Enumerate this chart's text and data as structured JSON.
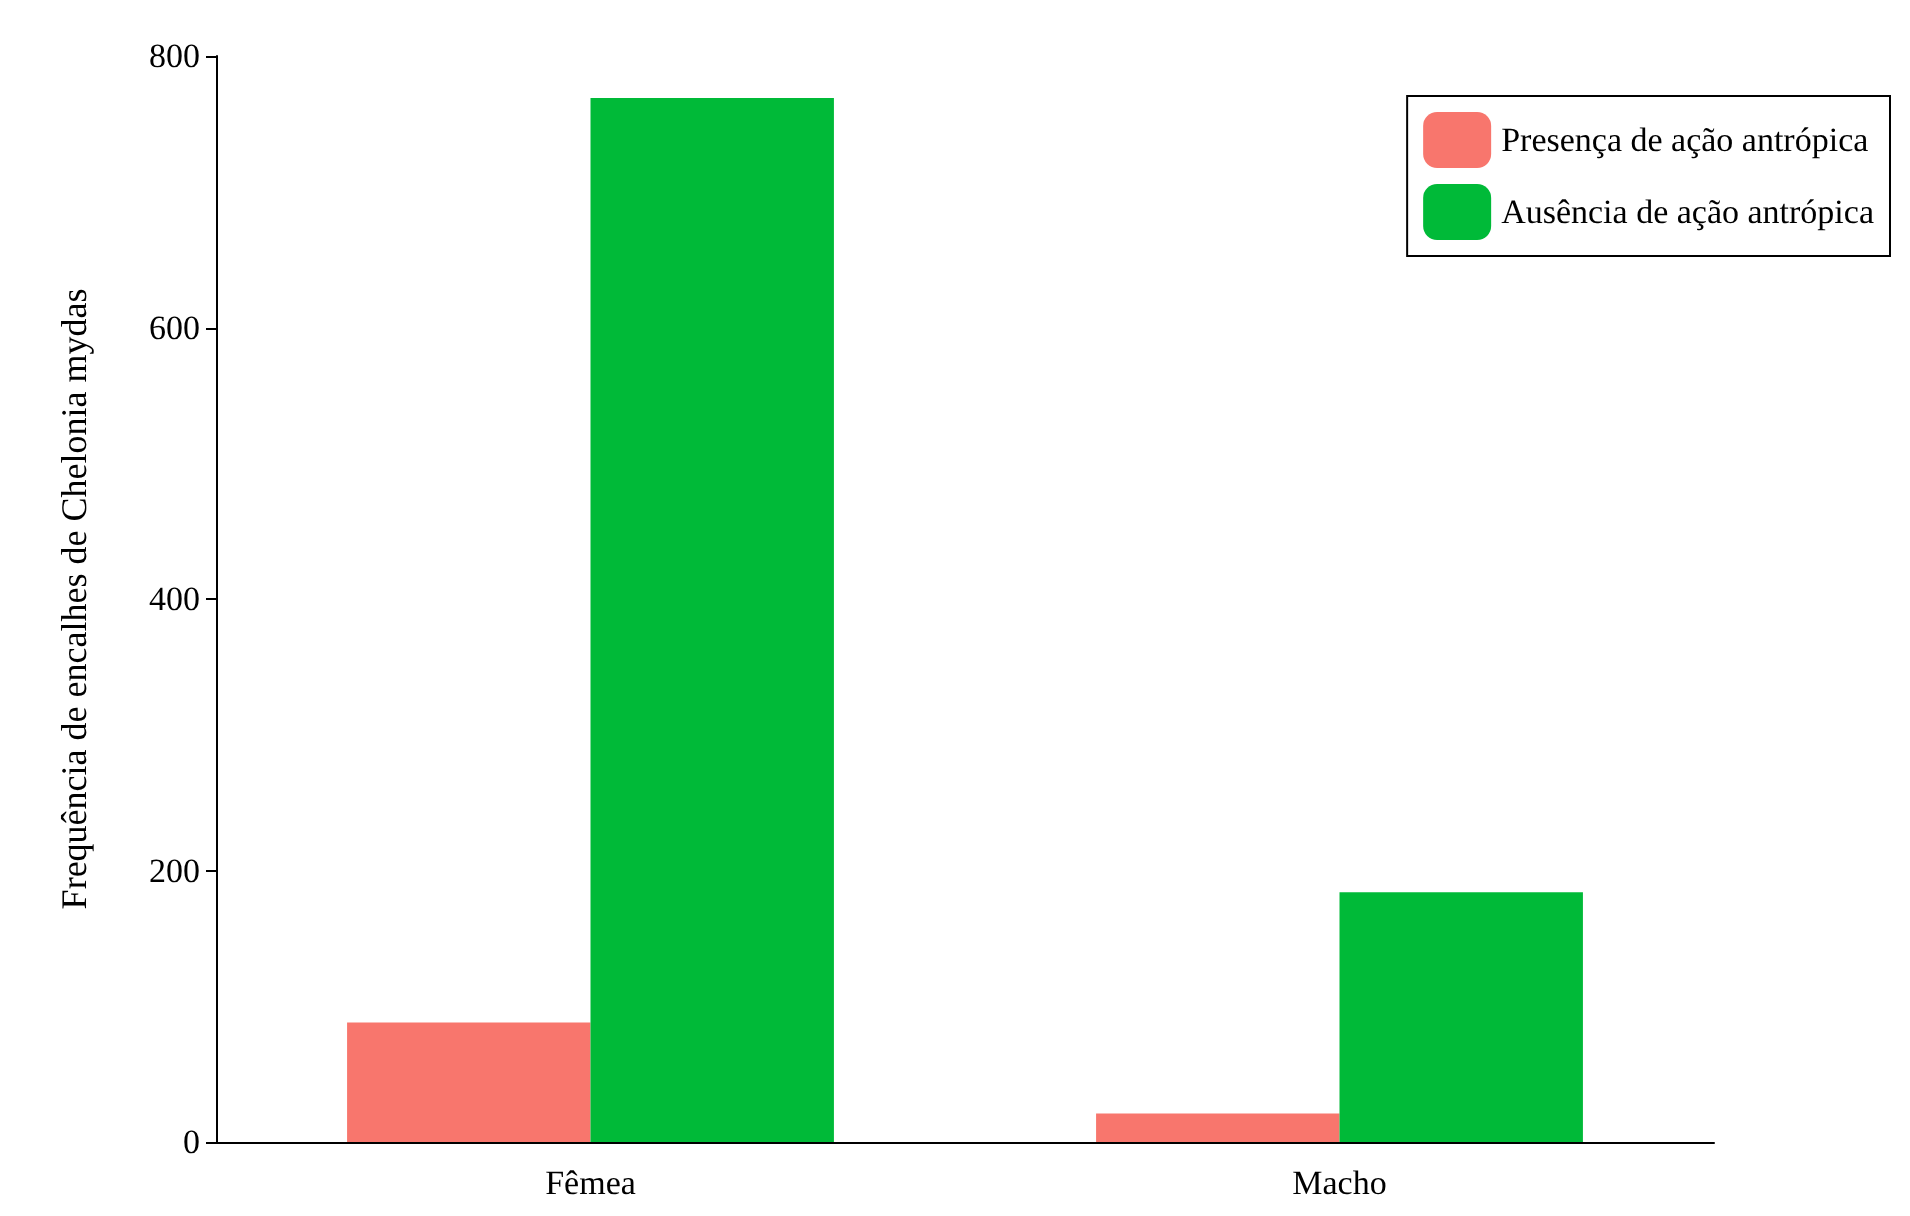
{
  "chart_data": {
    "type": "bar",
    "ylabel": "Frequência de encalhes de Chelonia mydas",
    "categories": [
      "Fêmea",
      "Macho"
    ],
    "series": [
      {
        "name": "Presença de ação antrópica",
        "color": "#f8766d",
        "values": [
          88,
          21
        ]
      },
      {
        "name": "Ausência de ação antrópica",
        "color": "#00ba38",
        "values": [
          769,
          184
        ]
      }
    ],
    "ylim": [
      0,
      800
    ],
    "yticks": [
      0,
      200,
      400,
      600,
      800
    ],
    "grid": false,
    "legend": "top right"
  }
}
